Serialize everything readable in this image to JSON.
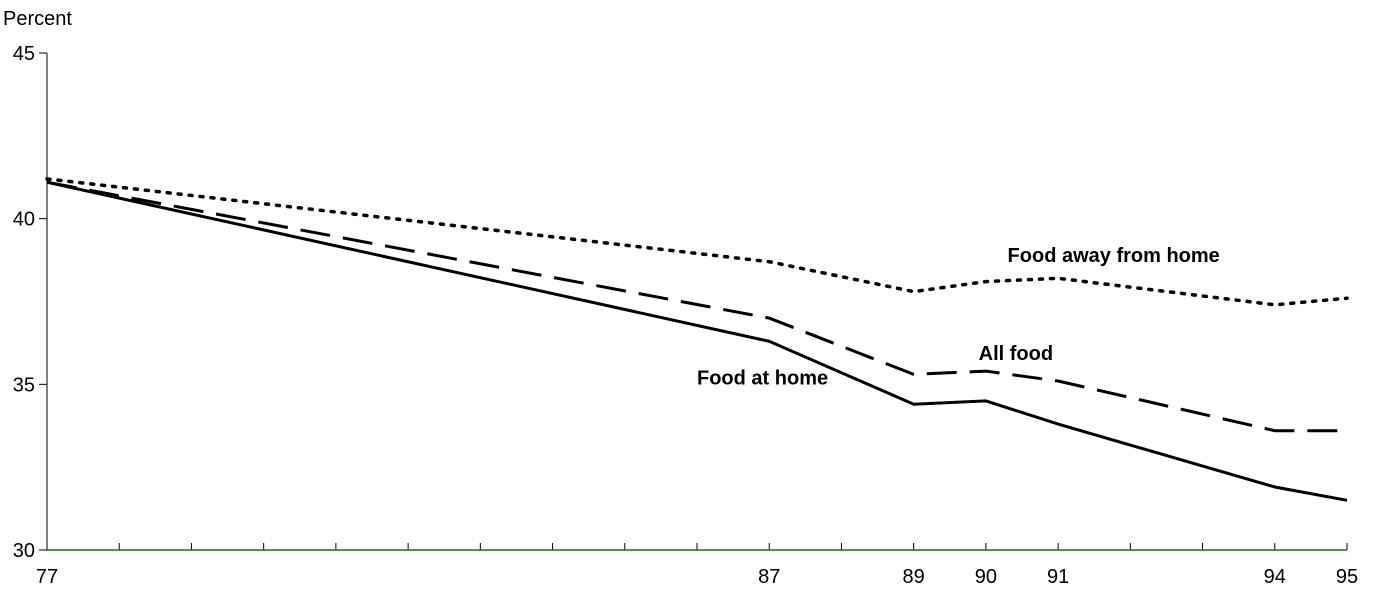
{
  "chart_data": {
    "type": "line",
    "ylabel": "Percent",
    "xlabel": "",
    "title": "",
    "ylim": [
      30,
      45
    ],
    "xlim": [
      77,
      95
    ],
    "y_ticks": [
      30,
      35,
      40,
      45
    ],
    "y_tick_labels": [
      "30",
      "35",
      "40",
      "45"
    ],
    "x_tick_labels": [
      {
        "value": 77,
        "label": "77"
      },
      {
        "value": 87,
        "label": "87"
      },
      {
        "value": 89,
        "label": "89"
      },
      {
        "value": 90,
        "label": "90"
      },
      {
        "value": 91,
        "label": "91"
      },
      {
        "value": 94,
        "label": "94"
      },
      {
        "value": 95,
        "label": "95"
      }
    ],
    "minor_x_ticks": [
      77,
      78,
      79,
      80,
      81,
      82,
      83,
      84,
      85,
      86,
      87,
      88,
      89,
      90,
      91,
      92,
      93,
      94,
      95
    ],
    "grid": false,
    "series": [
      {
        "name": "Food away from home",
        "style": "dotted",
        "color": "#000000",
        "x": [
          77,
          87,
          89,
          90,
          91,
          94,
          95
        ],
        "y": [
          41.2,
          38.7,
          37.8,
          38.1,
          38.2,
          37.4,
          37.6
        ]
      },
      {
        "name": "All food",
        "style": "dashed",
        "color": "#000000",
        "x": [
          77,
          87,
          89,
          90,
          91,
          94,
          95
        ],
        "y": [
          41.1,
          37.0,
          35.3,
          35.4,
          35.1,
          33.6,
          33.6
        ]
      },
      {
        "name": "Food at home",
        "style": "solid",
        "color": "#000000",
        "x": [
          77,
          87,
          89,
          90,
          91,
          94,
          95
        ],
        "y": [
          41.1,
          36.3,
          34.4,
          34.5,
          33.8,
          31.9,
          31.5
        ]
      }
    ],
    "annotations": [
      {
        "text": "Food away from home",
        "x": 90.3,
        "y": 38.9
      },
      {
        "text": "All food",
        "x": 89.9,
        "y": 35.95
      },
      {
        "text": "Food at home",
        "x": 86.0,
        "y": 35.2
      }
    ]
  }
}
